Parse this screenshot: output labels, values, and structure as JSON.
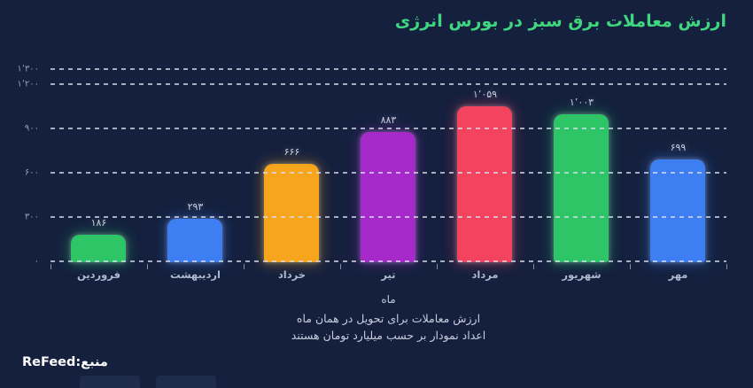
{
  "chart_data": {
    "type": "bar",
    "title": "ارزش معاملات برق سبز در بورس انرژی",
    "categories": [
      "فروردین",
      "اردیبهشت",
      "خرداد",
      "تیر",
      "مرداد",
      "شهریور",
      "مهر"
    ],
    "values": [
      186,
      293,
      666,
      883,
      1059,
      1003,
      699
    ],
    "value_labels": [
      "۱۸۶",
      "۲۹۳",
      "۶۶۶",
      "۸۸۳",
      "۱٬۰۵۹",
      "۱٬۰۰۳",
      "۶۹۹"
    ],
    "bar_colors": [
      "#2EC566",
      "#3D7FF2",
      "#F7A51C",
      "#A62AC9",
      "#F4435E",
      "#2EC566",
      "#3D7FF2"
    ],
    "xlabel": "ماه",
    "ylabel": "",
    "ylim": [
      0,
      1300
    ],
    "yticks": [
      {
        "value": 0,
        "label": "۰"
      },
      {
        "value": 300,
        "label": "۳۰۰"
      },
      {
        "value": 600,
        "label": "۶۰۰"
      },
      {
        "value": 900,
        "label": "۹۰۰"
      },
      {
        "value": 1200,
        "label": "۱٬۲۰۰"
      },
      {
        "value": 1300,
        "label": "۱٬۳۰۰"
      }
    ],
    "grid": "horizontal dashed",
    "legend_position": "none",
    "unit_note": "میلیارد تومان"
  },
  "footnotes": [
    "ارزش معاملات برای تحویل در همان ماه",
    "اعداد نمودار بر حسب میلیارد تومان هستند"
  ],
  "source": {
    "label": "منبع:",
    "name": "ReFeed"
  },
  "colors": {
    "background": "#14203E",
    "title": "#3FD67F",
    "grid": "#D6DDEC",
    "axis_text": "#AFB8CD",
    "value_text": "#C9D0E0",
    "source_text": "#FFFFFF"
  }
}
